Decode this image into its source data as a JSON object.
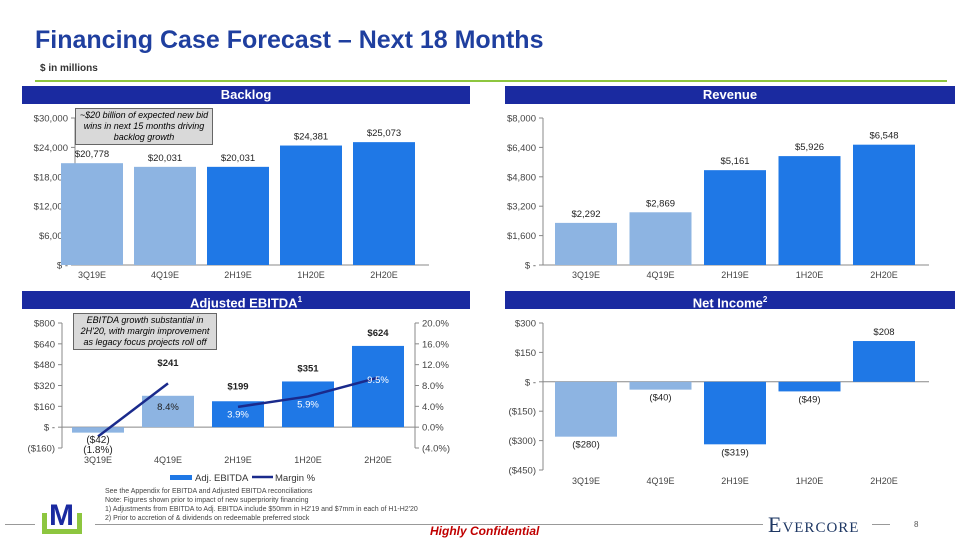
{
  "title": "Financing Case Forecast – Next 18 Months",
  "subtitle": "$ in millions",
  "colors": {
    "light_bar": "#8DB4E2",
    "dark_bar": "#1F78E6",
    "header": "#1A2AA0",
    "margin_line": "#1A2A8C",
    "confidential": "#C00000",
    "logo_green": "#8DC63F",
    "logo_blue": "#1A2AA0"
  },
  "panels": {
    "backlog": {
      "title": "Backlog",
      "note": "~$20 billion of expected new bid wins in next 15 months driving backlog growth"
    },
    "revenue": {
      "title": "Revenue"
    },
    "ebitda": {
      "title": "Adjusted EBITDA",
      "sup": "1",
      "note": "EBITDA growth substantial in 2H'20, with margin improvement as legacy focus projects roll off"
    },
    "net_income": {
      "title": "Net Income",
      "sup": "2"
    }
  },
  "chart_data": [
    {
      "type": "bar",
      "title": "Backlog",
      "categories": [
        "3Q19E",
        "4Q19E",
        "2H19E",
        "1H20E",
        "2H20E"
      ],
      "values": [
        20778,
        20031,
        20031,
        24381,
        25073
      ],
      "value_labels": [
        "$20,778",
        "$20,031",
        "$20,031",
        "$24,381",
        "$25,073"
      ],
      "bar_shade": [
        "light",
        "light",
        "dark",
        "dark",
        "dark"
      ],
      "ylim": [
        0,
        30000
      ],
      "yticks": [
        "$ -",
        "$6,000",
        "$12,000",
        "$18,000",
        "$24,000",
        "$30,000"
      ]
    },
    {
      "type": "bar",
      "title": "Revenue",
      "categories": [
        "3Q19E",
        "4Q19E",
        "2H19E",
        "1H20E",
        "2H20E"
      ],
      "values": [
        2292,
        2869,
        5161,
        5926,
        6548
      ],
      "value_labels": [
        "$2,292",
        "$2,869",
        "$5,161",
        "$5,926",
        "$6,548"
      ],
      "bar_shade": [
        "light",
        "light",
        "dark",
        "dark",
        "dark"
      ],
      "ylim": [
        0,
        8000
      ],
      "yticks": [
        "$ -",
        "$1,600",
        "$3,200",
        "$4,800",
        "$6,400",
        "$8,000"
      ]
    },
    {
      "type": "bar+line",
      "title": "Adjusted EBITDA",
      "categories": [
        "3Q19E",
        "4Q19E",
        "2H19E",
        "1H20E",
        "2H20E"
      ],
      "series": [
        {
          "name": "Adj. EBITDA",
          "values": [
            -42,
            241,
            199,
            351,
            624
          ],
          "value_labels": [
            "($42)",
            "$241",
            "$199",
            "$351",
            "$624"
          ]
        },
        {
          "name": "Margin %",
          "axis": "right",
          "values": [
            -1.8,
            8.4,
            3.9,
            5.9,
            9.5
          ],
          "value_labels": [
            "(1.8%)",
            "8.4%",
            "3.9%",
            "5.9%",
            "9.5%"
          ]
        }
      ],
      "bar_shade": [
        "light",
        "light",
        "dark",
        "dark",
        "dark"
      ],
      "ylim": [
        -160,
        800
      ],
      "yticks": [
        "($160)",
        "$ -",
        "$160",
        "$320",
        "$480",
        "$640",
        "$800"
      ],
      "y2lim": [
        -4,
        20
      ],
      "y2ticks": [
        "(4.0%)",
        "0.0%",
        "4.0%",
        "8.0%",
        "12.0%",
        "16.0%",
        "20.0%"
      ],
      "legend": "bottom"
    },
    {
      "type": "bar",
      "title": "Net Income",
      "categories": [
        "3Q19E",
        "4Q19E",
        "2H19E",
        "1H20E",
        "2H20E"
      ],
      "values": [
        -280,
        -40,
        -319,
        -49,
        208
      ],
      "value_labels": [
        "($280)",
        "($40)",
        "($319)",
        "($49)",
        "$208"
      ],
      "bar_shade": [
        "light",
        "light",
        "dark",
        "dark",
        "dark"
      ],
      "ylim": [
        -450,
        300
      ],
      "yticks": [
        "($450)",
        "($300)",
        "($150)",
        "$ -",
        "$150",
        "$300"
      ]
    }
  ],
  "footnotes": [
    "See the Appendix for EBITDA and Adjusted EBITDA reconciliations",
    "Note: Figures shown prior to impact of new superpriority financing",
    "1)   Adjustments from EBITDA to Adj. EBITDA include $50mm in H2'19  and $7mm in each of H1-H2'20",
    "2)   Prior to accretion of & dividends on redeemable preferred stock"
  ],
  "footer": {
    "confidential": "Highly Confidential",
    "brand": "Evercore",
    "logo_letter": "M",
    "page": "8"
  }
}
